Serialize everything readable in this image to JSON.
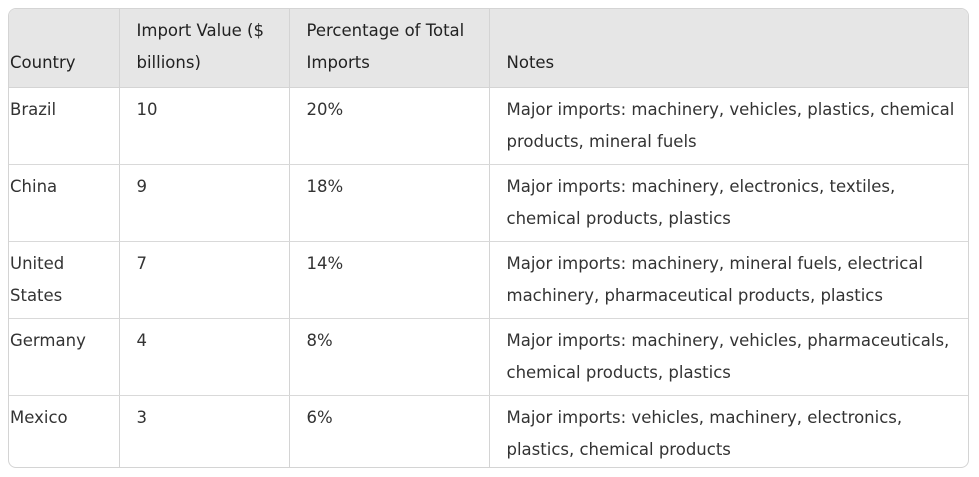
{
  "table": {
    "headers": [
      "Country",
      "Import Value ($ billions)",
      "Percentage of Total Imports",
      "Notes"
    ],
    "rows": [
      {
        "country": "Brazil",
        "value": "10",
        "percent": "20%",
        "notes": "Major imports: machinery, vehicles, plastics, chemical products, mineral fuels"
      },
      {
        "country": "China",
        "value": "9",
        "percent": "18%",
        "notes": "Major imports: machinery, electronics, textiles, chemical products, plastics"
      },
      {
        "country": "United States",
        "value": "7",
        "percent": "14%",
        "notes": "Major imports: machinery, mineral fuels, electrical machinery, pharmaceutical products, plastics"
      },
      {
        "country": "Germany",
        "value": "4",
        "percent": "8%",
        "notes": "Major imports: machinery, vehicles, pharmaceuticals, chemical products, plastics"
      },
      {
        "country": "Mexico",
        "value": "3",
        "percent": "6%",
        "notes": "Major imports: vehicles, machinery, electronics, plastics, chemical products"
      }
    ]
  },
  "colors": {
    "header_bg": "#e6e6e6",
    "border": "#d4d4d4",
    "text": "#333333"
  }
}
